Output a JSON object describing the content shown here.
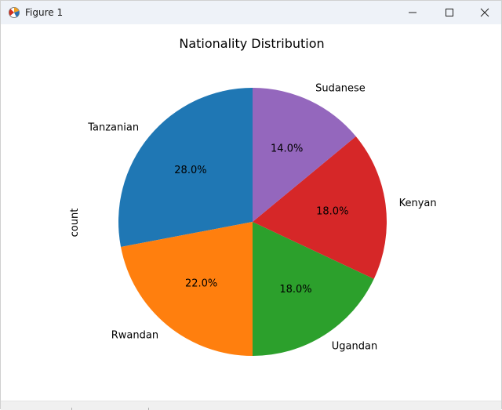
{
  "window": {
    "title": "Figure 1",
    "icon": "matplotlib-figure-icon",
    "controls": [
      "minimize-icon",
      "maximize-icon",
      "close-icon"
    ]
  },
  "chart_data": {
    "type": "pie",
    "title": "Nationality Distribution",
    "ylabel": "count",
    "labels": [
      "Tanzanian",
      "Rwandan",
      "Ugandan",
      "Kenyan",
      "Sudanese"
    ],
    "values": [
      28.0,
      22.0,
      18.0,
      18.0,
      14.0
    ],
    "autopct": [
      "28.0%",
      "22.0%",
      "18.0%",
      "18.0%",
      "14.0%"
    ],
    "colors": [
      "#1f77b4",
      "#ff7f0e",
      "#2ca02c",
      "#d62728",
      "#9467bd"
    ],
    "start_angle_deg": 90,
    "legend": "none"
  }
}
